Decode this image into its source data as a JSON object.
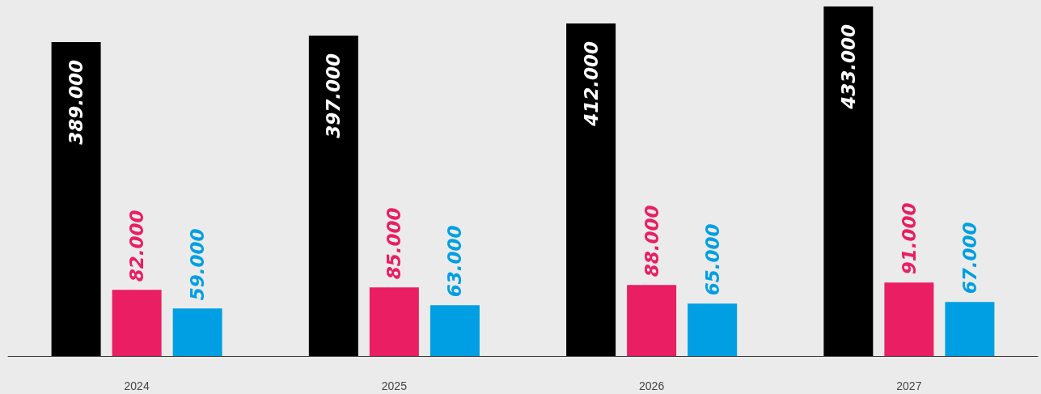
{
  "chart_data": {
    "type": "bar",
    "categories": [
      "2024",
      "2025",
      "2026",
      "2027"
    ],
    "series": [
      {
        "color": "#000000",
        "values": [
          389000,
          397000,
          412000,
          433000
        ],
        "value_labels": [
          "389.000",
          "397.000",
          "412.000",
          "433.000"
        ]
      },
      {
        "color": "#e91e63",
        "values": [
          82000,
          85000,
          88000,
          91000
        ],
        "value_labels": [
          "82.000",
          "85.000",
          "88.000",
          "91.000"
        ]
      },
      {
        "color": "#009fe3",
        "values": [
          59000,
          63000,
          65000,
          67000
        ],
        "value_labels": [
          "59.000",
          "63.000",
          "65.000",
          "67.000"
        ]
      }
    ]
  }
}
